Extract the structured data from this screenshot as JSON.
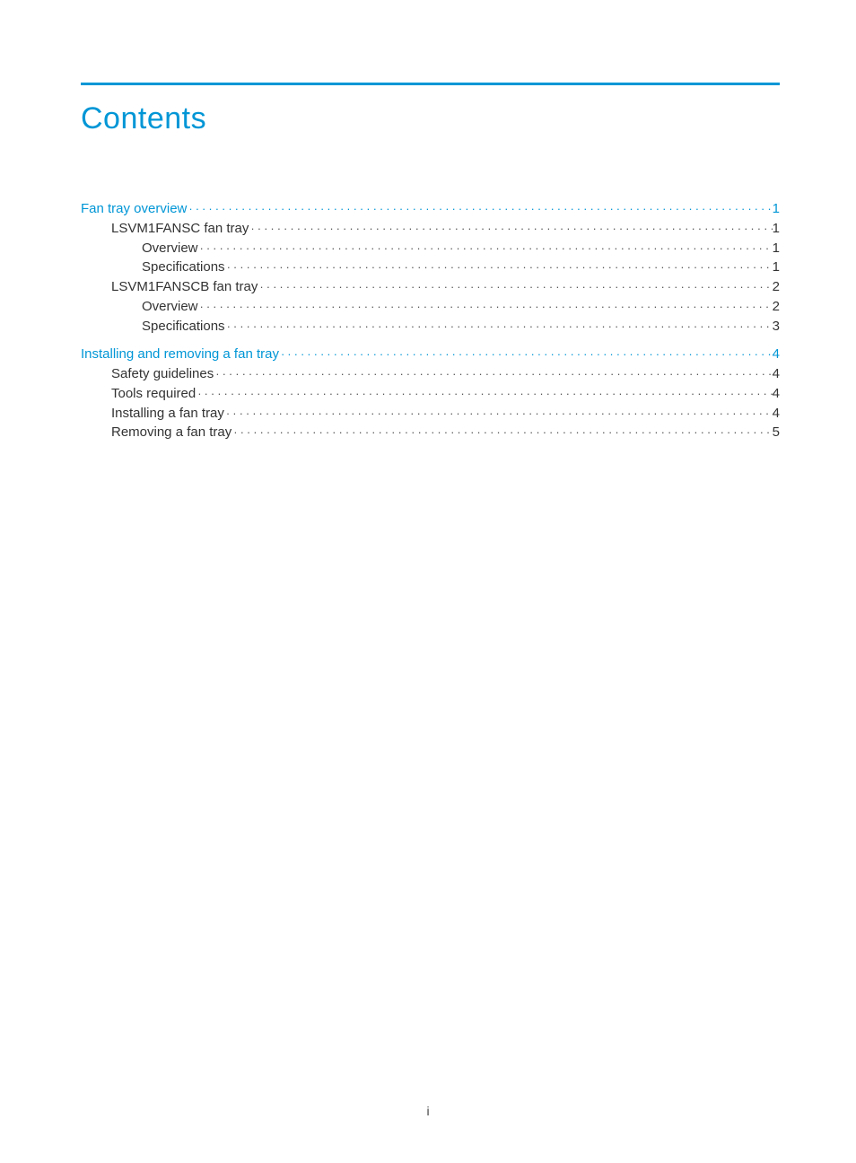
{
  "title": "Contents",
  "colors": {
    "accent": "#0096d6",
    "text": "#333333",
    "background": "#ffffff"
  },
  "typography": {
    "title_fontsize_pt": 26,
    "body_fontsize_pt": 11,
    "font_family": "Arial"
  },
  "toc": [
    {
      "label": "Fan tray overview",
      "page": "1",
      "level": 0,
      "accent": true
    },
    {
      "label": "LSVM1FANSC fan tray",
      "page": "1",
      "level": 1,
      "accent": false
    },
    {
      "label": "Overview",
      "page": "1",
      "level": 2,
      "accent": false
    },
    {
      "label": "Specifications",
      "page": "1",
      "level": 2,
      "accent": false
    },
    {
      "label": "LSVM1FANSCB fan tray",
      "page": "2",
      "level": 1,
      "accent": false
    },
    {
      "label": "Overview",
      "page": "2",
      "level": 2,
      "accent": false
    },
    {
      "label": "Specifications",
      "page": "3",
      "level": 2,
      "accent": false
    },
    {
      "label": "Installing and removing a fan tray",
      "page": "4",
      "level": 0,
      "accent": true
    },
    {
      "label": "Safety guidelines",
      "page": "4",
      "level": 1,
      "accent": false
    },
    {
      "label": "Tools required",
      "page": "4",
      "level": 1,
      "accent": false
    },
    {
      "label": "Installing a fan tray",
      "page": "4",
      "level": 1,
      "accent": false
    },
    {
      "label": "Removing a fan tray",
      "page": "5",
      "level": 1,
      "accent": false
    }
  ],
  "footer": "i"
}
